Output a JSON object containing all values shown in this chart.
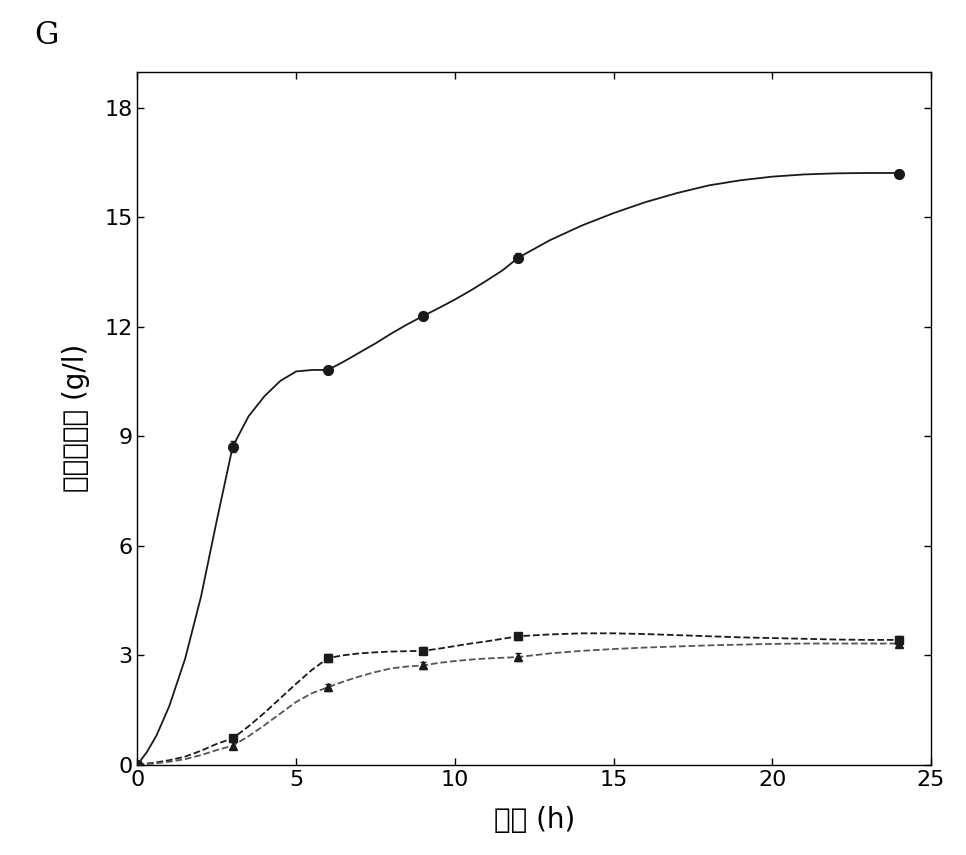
{
  "title_label": "G",
  "xlabel": "时间 (h)",
  "ylabel": "环糊精产量 (g/l)",
  "xlim": [
    0,
    25
  ],
  "ylim": [
    0,
    19
  ],
  "yticks": [
    0,
    3,
    6,
    9,
    12,
    15,
    18
  ],
  "xticks": [
    0,
    5,
    10,
    15,
    20,
    25
  ],
  "series": [
    {
      "x": [
        0,
        3,
        6,
        9,
        12,
        24
      ],
      "y": [
        0,
        8.72,
        10.82,
        12.3,
        13.9,
        16.2
      ],
      "yerr": [
        0,
        0.15,
        0.12,
        0.12,
        0.12,
        0.1
      ],
      "marker": "o",
      "linestyle": "-",
      "color": "#1a1a1a",
      "markersize": 7,
      "linewidth": 1.3,
      "filled": true
    },
    {
      "x": [
        0,
        3,
        6,
        9,
        12,
        24
      ],
      "y": [
        0,
        0.72,
        2.92,
        3.12,
        3.52,
        3.42
      ],
      "yerr": [
        0,
        0.1,
        0.1,
        0.1,
        0.1,
        0.1
      ],
      "marker": "s",
      "linestyle": "--",
      "color": "#1a1a1a",
      "markersize": 6,
      "linewidth": 1.3,
      "filled": true
    },
    {
      "x": [
        0,
        3,
        6,
        9,
        12,
        24
      ],
      "y": [
        0,
        0.52,
        2.12,
        2.72,
        2.95,
        3.32
      ],
      "yerr": [
        0,
        0.1,
        0.1,
        0.1,
        0.1,
        0.1
      ],
      "marker": "^",
      "linestyle": "--",
      "color": "#1a1a1a",
      "markersize": 6,
      "linewidth": 1.3,
      "filled": true
    }
  ],
  "smooth_series": [
    {
      "x_smooth": [
        0,
        0.3,
        0.6,
        1.0,
        1.5,
        2.0,
        2.5,
        3.0,
        3.5,
        4.0,
        4.5,
        5.0,
        5.5,
        6.0,
        6.5,
        7.0,
        7.5,
        8.0,
        8.5,
        9.0,
        9.5,
        10.0,
        10.5,
        11.0,
        11.5,
        12.0,
        13.0,
        14.0,
        15.0,
        16.0,
        17.0,
        18.0,
        19.0,
        20.0,
        21.0,
        22.0,
        23.0,
        24.0
      ],
      "y_smooth": [
        0,
        0.35,
        0.8,
        1.6,
        2.9,
        4.6,
        6.7,
        8.72,
        9.55,
        10.1,
        10.52,
        10.78,
        10.82,
        10.82,
        11.05,
        11.3,
        11.55,
        11.82,
        12.07,
        12.3,
        12.52,
        12.75,
        13.0,
        13.27,
        13.55,
        13.9,
        14.38,
        14.78,
        15.12,
        15.42,
        15.67,
        15.88,
        16.02,
        16.12,
        16.18,
        16.21,
        16.22,
        16.22
      ],
      "linestyle": "-",
      "color": "#1a1a1a",
      "linewidth": 1.3
    },
    {
      "x_smooth": [
        0,
        0.5,
        1,
        1.5,
        2,
        2.5,
        3,
        3.5,
        4,
        4.5,
        5,
        5.5,
        6,
        6.5,
        7,
        7.5,
        8,
        8.5,
        9,
        9.5,
        10,
        10.5,
        11,
        11.5,
        12,
        13,
        14,
        15,
        16,
        17,
        18,
        19,
        20,
        21,
        22,
        23,
        24
      ],
      "y_smooth": [
        0,
        0.05,
        0.12,
        0.22,
        0.38,
        0.57,
        0.72,
        1.05,
        1.42,
        1.82,
        2.22,
        2.6,
        2.92,
        3.0,
        3.05,
        3.08,
        3.1,
        3.11,
        3.12,
        3.18,
        3.25,
        3.32,
        3.38,
        3.45,
        3.52,
        3.57,
        3.6,
        3.6,
        3.58,
        3.55,
        3.52,
        3.49,
        3.47,
        3.45,
        3.43,
        3.42,
        3.42
      ],
      "linestyle": "--",
      "color": "#1a1a1a",
      "linewidth": 1.3
    },
    {
      "x_smooth": [
        0,
        0.5,
        1,
        1.5,
        2,
        2.5,
        3,
        3.5,
        4,
        4.5,
        5,
        5.5,
        6,
        6.5,
        7,
        7.5,
        8,
        8.5,
        9,
        9.5,
        10,
        10.5,
        11,
        11.5,
        12,
        13,
        14,
        15,
        16,
        17,
        18,
        19,
        20,
        21,
        22,
        23,
        24
      ],
      "y_smooth": [
        0,
        0.03,
        0.08,
        0.15,
        0.26,
        0.4,
        0.52,
        0.78,
        1.08,
        1.4,
        1.72,
        1.96,
        2.12,
        2.28,
        2.42,
        2.54,
        2.64,
        2.69,
        2.72,
        2.79,
        2.84,
        2.88,
        2.91,
        2.93,
        2.95,
        3.05,
        3.12,
        3.17,
        3.21,
        3.24,
        3.27,
        3.29,
        3.31,
        3.32,
        3.32,
        3.32,
        3.32
      ],
      "linestyle": "--",
      "color": "#555555",
      "linewidth": 1.3
    }
  ],
  "background_color": "#ffffff",
  "font_size_label": 20,
  "font_size_tick": 16,
  "font_size_panel": 22
}
